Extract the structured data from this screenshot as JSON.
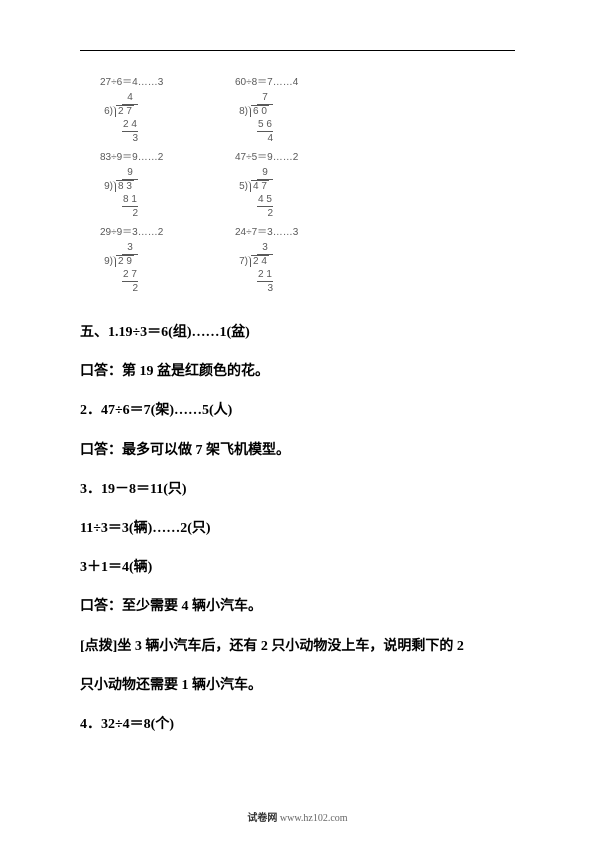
{
  "calc": {
    "row1": {
      "left": {
        "eq": "27÷6＝4……3",
        "q": "4",
        "divisor": "6",
        "dividend": "2 7",
        "sub": "2 4",
        "rem": "3"
      },
      "right": {
        "eq": "60÷8＝7……4",
        "q": "7",
        "divisor": "8",
        "dividend": "6 0",
        "sub": "5 6",
        "rem": "4"
      }
    },
    "row2": {
      "left": {
        "eq": "83÷9＝9……2",
        "q": "9",
        "divisor": "9",
        "dividend": "8 3",
        "sub": "8 1",
        "rem": "2"
      },
      "right": {
        "eq": "47÷5＝9……2",
        "q": "9",
        "divisor": "5",
        "dividend": "4 7",
        "sub": "4 5",
        "rem": "2"
      }
    },
    "row3": {
      "left": {
        "eq": "29÷9＝3……2",
        "q": "3",
        "divisor": "9",
        "dividend": "2 9",
        "sub": "2 7",
        "rem": "2"
      },
      "right": {
        "eq": "24÷7＝3……3",
        "q": "3",
        "divisor": "7",
        "dividend": "2 4",
        "sub": "2 1",
        "rem": "3"
      }
    }
  },
  "lines": {
    "l1": "五、1.19÷3＝6(组)……1(盆)",
    "l2": "口答：第 19 盆是红颜色的花。",
    "l3": "2．47÷6＝7(架)……5(人)",
    "l4": "口答：最多可以做 7 架飞机模型。",
    "l5": "3．19－8＝11(只)",
    "l6": "11÷3＝3(辆)……2(只)",
    "l7": "3＋1＝4(辆)",
    "l8": "口答：至少需要 4 辆小汽车。",
    "l9": "[点拨]坐 3 辆小汽车后，还有 2 只小动物没上车，说明剩下的 2",
    "l10": "只小动物还需要 1 辆小汽车。",
    "l11": "4．32÷4＝8(个)"
  },
  "footer": {
    "label": "试卷网",
    "url": "www.hz102.com"
  }
}
